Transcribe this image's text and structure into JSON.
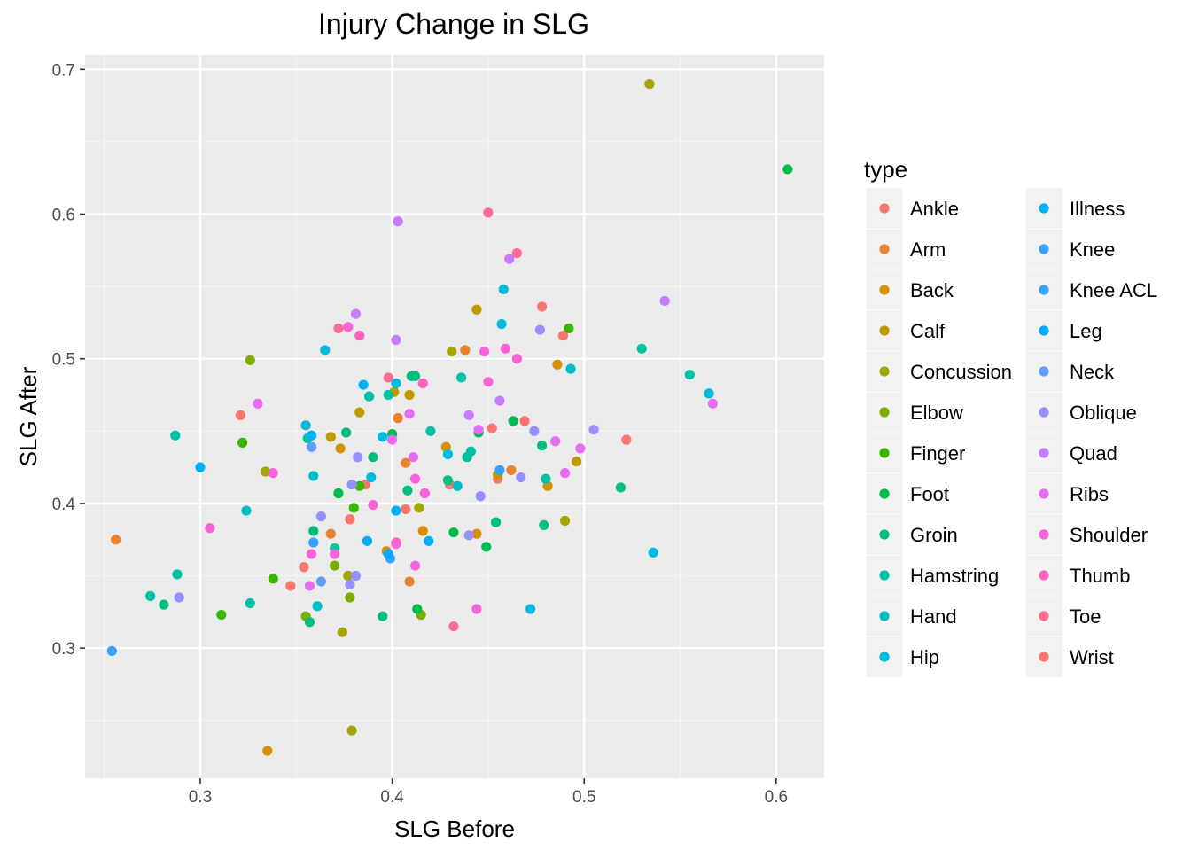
{
  "chart_data": {
    "type": "scatter",
    "title": "Injury Change in SLG",
    "xlabel": "SLG Before",
    "ylabel": "SLG After",
    "xlim": [
      0.24,
      0.625
    ],
    "ylim": [
      0.21,
      0.71
    ],
    "x_ticks": [
      0.3,
      0.4,
      0.5,
      0.6
    ],
    "y_ticks": [
      0.3,
      0.4,
      0.5,
      0.6,
      0.7
    ],
    "x_tick_labels": [
      "0.3",
      "0.4",
      "0.5",
      "0.6"
    ],
    "y_tick_labels": [
      "0.3",
      "0.4",
      "0.5",
      "0.6",
      "0.7"
    ],
    "grid": true,
    "legend": {
      "title": "type",
      "position": "right",
      "columns": 2
    },
    "series": [
      {
        "name": "Ankle",
        "color": "#F8766D",
        "points": [
          [
            0.321,
            0.461
          ],
          [
            0.347,
            0.343
          ],
          [
            0.354,
            0.356
          ],
          [
            0.378,
            0.389
          ],
          [
            0.386,
            0.413
          ],
          [
            0.402,
            0.373
          ],
          [
            0.407,
            0.396
          ],
          [
            0.43,
            0.413
          ],
          [
            0.452,
            0.452
          ],
          [
            0.455,
            0.417
          ],
          [
            0.469,
            0.457
          ],
          [
            0.478,
            0.536
          ],
          [
            0.489,
            0.516
          ],
          [
            0.522,
            0.444
          ]
        ]
      },
      {
        "name": "Arm",
        "color": "#EA8331",
        "points": [
          [
            0.256,
            0.375
          ],
          [
            0.368,
            0.379
          ],
          [
            0.403,
            0.459
          ],
          [
            0.407,
            0.428
          ],
          [
            0.409,
            0.346
          ],
          [
            0.438,
            0.506
          ],
          [
            0.462,
            0.423
          ]
        ]
      },
      {
        "name": "Back",
        "color": "#D89000",
        "points": [
          [
            0.335,
            0.229
          ],
          [
            0.373,
            0.438
          ],
          [
            0.397,
            0.367
          ],
          [
            0.416,
            0.381
          ],
          [
            0.428,
            0.439
          ],
          [
            0.444,
            0.379
          ],
          [
            0.481,
            0.412
          ],
          [
            0.486,
            0.496
          ]
        ]
      },
      {
        "name": "Calf",
        "color": "#C09B00",
        "points": [
          [
            0.368,
            0.446
          ],
          [
            0.383,
            0.463
          ],
          [
            0.401,
            0.477
          ],
          [
            0.409,
            0.475
          ],
          [
            0.444,
            0.534
          ],
          [
            0.455,
            0.42
          ],
          [
            0.496,
            0.429
          ]
        ]
      },
      {
        "name": "Concussion",
        "color": "#A3A500",
        "points": [
          [
            0.334,
            0.422
          ],
          [
            0.374,
            0.311
          ],
          [
            0.377,
            0.35
          ],
          [
            0.379,
            0.243
          ],
          [
            0.414,
            0.397
          ],
          [
            0.431,
            0.505
          ],
          [
            0.49,
            0.388
          ],
          [
            0.534,
            0.69
          ]
        ]
      },
      {
        "name": "Elbow",
        "color": "#7CAE00",
        "points": [
          [
            0.326,
            0.499
          ],
          [
            0.355,
            0.322
          ],
          [
            0.37,
            0.357
          ],
          [
            0.378,
            0.335
          ],
          [
            0.415,
            0.323
          ]
        ]
      },
      {
        "name": "Finger",
        "color": "#39B600",
        "points": [
          [
            0.311,
            0.323
          ],
          [
            0.322,
            0.442
          ],
          [
            0.338,
            0.348
          ],
          [
            0.38,
            0.397
          ],
          [
            0.383,
            0.412
          ],
          [
            0.492,
            0.521
          ]
        ]
      },
      {
        "name": "Foot",
        "color": "#00BB4E",
        "points": [
          [
            0.372,
            0.407
          ],
          [
            0.4,
            0.448
          ],
          [
            0.413,
            0.327
          ],
          [
            0.432,
            0.38
          ],
          [
            0.445,
            0.449
          ],
          [
            0.449,
            0.37
          ],
          [
            0.463,
            0.457
          ],
          [
            0.606,
            0.631
          ]
        ]
      },
      {
        "name": "Groin",
        "color": "#00BF7D",
        "points": [
          [
            0.281,
            0.33
          ],
          [
            0.357,
            0.318
          ],
          [
            0.359,
            0.381
          ],
          [
            0.376,
            0.449
          ],
          [
            0.39,
            0.432
          ],
          [
            0.395,
            0.322
          ],
          [
            0.408,
            0.409
          ],
          [
            0.41,
            0.488
          ],
          [
            0.412,
            0.488
          ],
          [
            0.429,
            0.416
          ],
          [
            0.454,
            0.387
          ],
          [
            0.478,
            0.44
          ],
          [
            0.479,
            0.385
          ],
          [
            0.519,
            0.411
          ]
        ]
      },
      {
        "name": "Hamstring",
        "color": "#00C1A3",
        "points": [
          [
            0.274,
            0.336
          ],
          [
            0.287,
            0.447
          ],
          [
            0.288,
            0.351
          ],
          [
            0.326,
            0.331
          ],
          [
            0.356,
            0.445
          ],
          [
            0.37,
            0.369
          ],
          [
            0.388,
            0.474
          ],
          [
            0.398,
            0.475
          ],
          [
            0.42,
            0.45
          ],
          [
            0.436,
            0.487
          ],
          [
            0.439,
            0.432
          ],
          [
            0.441,
            0.436
          ],
          [
            0.48,
            0.417
          ],
          [
            0.53,
            0.507
          ],
          [
            0.555,
            0.489
          ]
        ]
      },
      {
        "name": "Hand",
        "color": "#00BFC4",
        "points": [
          [
            0.324,
            0.395
          ],
          [
            0.359,
            0.419
          ],
          [
            0.361,
            0.329
          ],
          [
            0.434,
            0.412
          ],
          [
            0.493,
            0.493
          ]
        ]
      },
      {
        "name": "Hip",
        "color": "#00BAE0",
        "points": [
          [
            0.355,
            0.454
          ],
          [
            0.365,
            0.506
          ],
          [
            0.389,
            0.418
          ],
          [
            0.395,
            0.446
          ],
          [
            0.402,
            0.483
          ],
          [
            0.429,
            0.434
          ],
          [
            0.457,
            0.524
          ],
          [
            0.458,
            0.548
          ],
          [
            0.472,
            0.327
          ],
          [
            0.536,
            0.366
          ],
          [
            0.565,
            0.476
          ]
        ]
      },
      {
        "name": "Illness",
        "color": "#00B0F6",
        "points": [
          [
            0.3,
            0.425
          ],
          [
            0.358,
            0.447
          ],
          [
            0.385,
            0.482
          ],
          [
            0.387,
            0.374
          ],
          [
            0.402,
            0.395
          ],
          [
            0.419,
            0.374
          ]
        ]
      },
      {
        "name": "Knee",
        "color": "#35A2FF",
        "points": [
          [
            0.254,
            0.298
          ],
          [
            0.359,
            0.373
          ],
          [
            0.399,
            0.362
          ]
        ]
      },
      {
        "name": "Knee ACL",
        "color": "#35A2FF",
        "points": [
          [
            0.456,
            0.423
          ]
        ]
      },
      {
        "name": "Leg",
        "color": "#00A9FF",
        "points": [
          [
            0.398,
            0.365
          ]
        ]
      },
      {
        "name": "Neck",
        "color": "#619CFF",
        "points": [
          [
            0.358,
            0.439
          ],
          [
            0.363,
            0.346
          ]
        ]
      },
      {
        "name": "Oblique",
        "color": "#9590FF",
        "points": [
          [
            0.289,
            0.335
          ],
          [
            0.363,
            0.391
          ],
          [
            0.378,
            0.344
          ],
          [
            0.379,
            0.413
          ],
          [
            0.381,
            0.35
          ],
          [
            0.382,
            0.432
          ],
          [
            0.44,
            0.378
          ],
          [
            0.446,
            0.405
          ],
          [
            0.467,
            0.418
          ],
          [
            0.474,
            0.45
          ],
          [
            0.477,
            0.52
          ],
          [
            0.505,
            0.451
          ]
        ]
      },
      {
        "name": "Quad",
        "color": "#C77CFF",
        "points": [
          [
            0.381,
            0.531
          ],
          [
            0.402,
            0.513
          ],
          [
            0.403,
            0.595
          ],
          [
            0.44,
            0.461
          ],
          [
            0.456,
            0.471
          ],
          [
            0.461,
            0.569
          ],
          [
            0.542,
            0.54
          ]
        ]
      },
      {
        "name": "Ribs",
        "color": "#E76BF3",
        "points": [
          [
            0.33,
            0.469
          ],
          [
            0.357,
            0.343
          ],
          [
            0.4,
            0.444
          ],
          [
            0.409,
            0.462
          ],
          [
            0.411,
            0.432
          ],
          [
            0.445,
            0.451
          ],
          [
            0.485,
            0.443
          ],
          [
            0.49,
            0.421
          ],
          [
            0.498,
            0.438
          ],
          [
            0.567,
            0.469
          ]
        ]
      },
      {
        "name": "Shoulder",
        "color": "#FA62DB",
        "points": [
          [
            0.305,
            0.383
          ],
          [
            0.338,
            0.421
          ],
          [
            0.358,
            0.365
          ],
          [
            0.37,
            0.365
          ],
          [
            0.377,
            0.522
          ],
          [
            0.39,
            0.399
          ],
          [
            0.402,
            0.372
          ],
          [
            0.412,
            0.357
          ],
          [
            0.412,
            0.417
          ],
          [
            0.417,
            0.407
          ],
          [
            0.444,
            0.327
          ],
          [
            0.448,
            0.505
          ],
          [
            0.45,
            0.484
          ],
          [
            0.459,
            0.507
          ],
          [
            0.465,
            0.5
          ]
        ]
      },
      {
        "name": "Thumb",
        "color": "#FF62BC",
        "points": [
          [
            0.383,
            0.516
          ],
          [
            0.416,
            0.483
          ]
        ]
      },
      {
        "name": "Toe",
        "color": "#FF6C91",
        "points": [
          [
            0.372,
            0.521
          ],
          [
            0.398,
            0.487
          ],
          [
            0.432,
            0.315
          ],
          [
            0.45,
            0.601
          ],
          [
            0.465,
            0.573
          ]
        ]
      },
      {
        "name": "Wrist",
        "color": "#F8766D",
        "points": []
      }
    ]
  }
}
